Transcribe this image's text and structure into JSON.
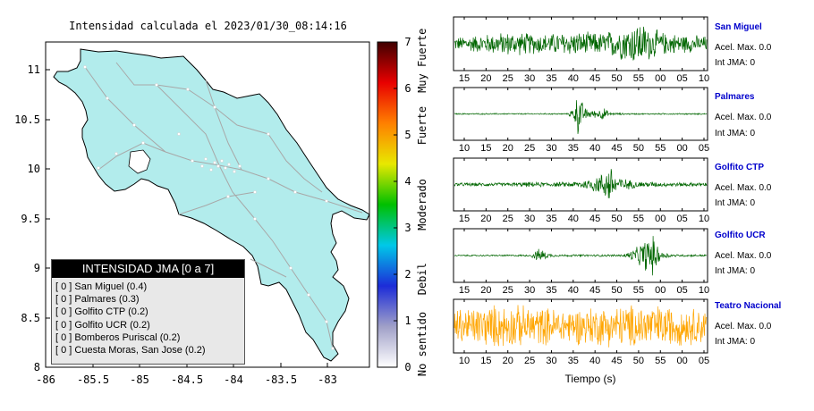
{
  "map": {
    "title": "Intensidad calculada el 2023/01/30_08:14:16",
    "x_ticks": [
      "-86",
      "-85.5",
      "-85",
      "-84.5",
      "-84",
      "-83.5",
      "-83"
    ],
    "y_ticks": [
      "11",
      "10.5",
      "10",
      "9.5",
      "9",
      "8.5",
      "8"
    ],
    "colors": {
      "land": "#b2ecec",
      "border": "#000000",
      "roads": "#a8a8a8"
    },
    "legend": {
      "title": "INTENSIDAD JMA [0 a 7]",
      "items": [
        "[ 0 ] San Miguel (0.4)",
        "[ 0 ] Palmares (0.3)",
        "[ 0 ] Golfito CTP (0.2)",
        "[ 0 ] Golfito UCR (0.2)",
        "[ 0 ] Bomberos Puriscal (0.2)",
        "[ 0 ] Cuesta Moras, San Jose (0.2)"
      ]
    }
  },
  "colorbar": {
    "ticks": [
      "0",
      "1",
      "2",
      "3",
      "4",
      "5",
      "6",
      "7"
    ],
    "category_labels": [
      "No sentido",
      "Debil",
      "Moderado",
      "Fuerte",
      "Muy Fuerte"
    ],
    "colors": [
      "#ffffff",
      "#a0a0c8",
      "#1c2cd8",
      "#00c8e8",
      "#00c000",
      "#e8e800",
      "#ff8000",
      "#e80000",
      "#400000"
    ]
  },
  "chart_data": {
    "type": "line",
    "xlabel": "Tiempo (s)",
    "series": [
      {
        "name": "San Miguel",
        "acel_label": "Acel. Max. 0.0",
        "int_label": "Int JMA: 0",
        "color": "#006600",
        "x_ticks": [
          "15",
          "20",
          "25",
          "30",
          "35",
          "40",
          "45",
          "50",
          "55",
          "00",
          "05",
          "10"
        ],
        "envelope": [
          [
            12,
            0.3
          ],
          [
            20,
            0.45
          ],
          [
            25,
            0.55
          ],
          [
            33,
            0.45
          ],
          [
            40,
            0.55
          ],
          [
            47,
            0.5
          ],
          [
            52,
            0.75
          ],
          [
            56,
            1.0
          ],
          [
            59,
            0.7
          ],
          [
            62,
            0.5
          ],
          [
            68,
            0.4
          ],
          [
            72,
            0.35
          ]
        ]
      },
      {
        "name": "Palmares",
        "acel_label": "Acel. Max. 0.0",
        "int_label": "Int JMA: 0",
        "color": "#006600",
        "x_ticks": [
          "10",
          "15",
          "20",
          "25",
          "30",
          "35",
          "40",
          "45",
          "50",
          "55",
          "00",
          "05"
        ],
        "envelope": [
          [
            10,
            0.03
          ],
          [
            37,
            0.03
          ],
          [
            38.5,
            0.4
          ],
          [
            39.4,
            1.0
          ],
          [
            41,
            0.3
          ],
          [
            43,
            0.15
          ],
          [
            45.5,
            0.3
          ],
          [
            47,
            0.06
          ],
          [
            52,
            0.03
          ],
          [
            70,
            0.03
          ]
        ]
      },
      {
        "name": "Golfito CTP",
        "acel_label": "Acel. Max. 0.0",
        "int_label": "Int JMA: 0",
        "color": "#006600",
        "x_ticks": [
          "15",
          "20",
          "25",
          "30",
          "35",
          "40",
          "45",
          "50",
          "55",
          "00",
          "05",
          "10"
        ],
        "envelope": [
          [
            12,
            0.08
          ],
          [
            25,
            0.08
          ],
          [
            30,
            0.12
          ],
          [
            35,
            0.1
          ],
          [
            40,
            0.12
          ],
          [
            44,
            0.25
          ],
          [
            47.5,
            0.55
          ],
          [
            49,
            1.0
          ],
          [
            51,
            0.35
          ],
          [
            55,
            0.15
          ],
          [
            62,
            0.1
          ],
          [
            72,
            0.08
          ]
        ]
      },
      {
        "name": "Golfito UCR",
        "acel_label": "Acel. Max. 0.0",
        "int_label": "Int JMA: 0",
        "color": "#006600",
        "x_ticks": [
          "15",
          "20",
          "25",
          "30",
          "35",
          "40",
          "45",
          "50",
          "55",
          "00",
          "05",
          "10"
        ],
        "envelope": [
          [
            12,
            0.03
          ],
          [
            30,
            0.04
          ],
          [
            32.5,
            0.35
          ],
          [
            34,
            0.12
          ],
          [
            36,
            0.05
          ],
          [
            52,
            0.05
          ],
          [
            55,
            0.3
          ],
          [
            59,
            1.0
          ],
          [
            61,
            0.2
          ],
          [
            64,
            0.06
          ],
          [
            72,
            0.04
          ]
        ]
      },
      {
        "name": "Teatro Nacional",
        "acel_label": "Acel. Max. 0.0",
        "int_label": "Int JMA: 0",
        "color": "#ffa500",
        "x_ticks": [
          "10",
          "15",
          "20",
          "25",
          "30",
          "35",
          "40",
          "45",
          "50",
          "55",
          "00",
          "05"
        ],
        "envelope": [
          [
            7,
            0.8
          ],
          [
            19,
            1.0
          ],
          [
            35,
            0.8
          ],
          [
            55,
            1.0
          ],
          [
            72,
            0.8
          ]
        ]
      }
    ]
  }
}
